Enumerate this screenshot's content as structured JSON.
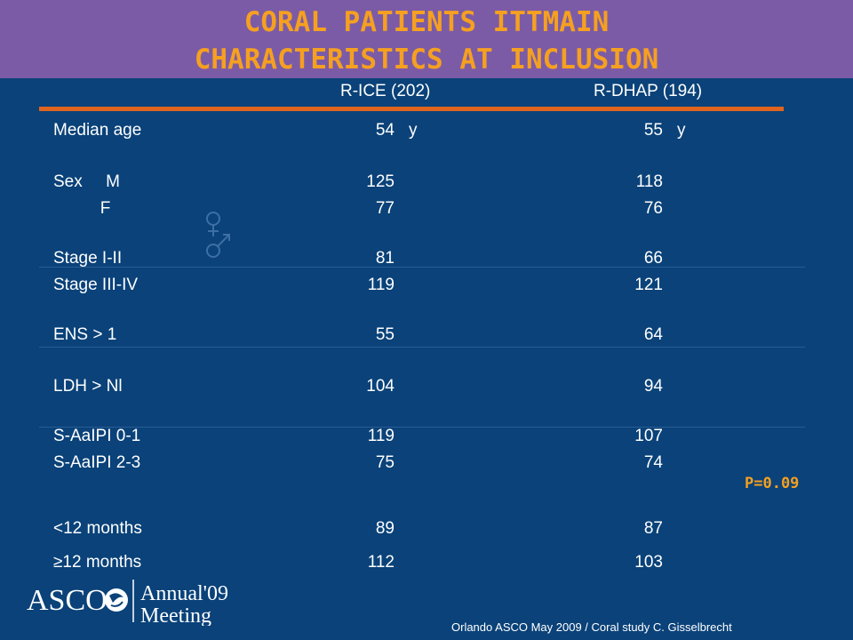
{
  "title": {
    "line1": "CORAL PATIENTS ITTMAIN",
    "line2": "CHARACTERISTICS AT INCLUSION"
  },
  "columns": {
    "col1": "R-ICE (202)",
    "col2": "R-DHAP  (194)"
  },
  "rows": [
    {
      "label": "Median age",
      "v1": "54",
      "v2": "55",
      "unit": "y"
    },
    {
      "label": "Sex     M",
      "v1": "125",
      "v2": "118"
    },
    {
      "label": "          F",
      "v1": "77",
      "v2": "76"
    },
    {
      "label": "Stage I-II",
      "v1": "81",
      "v2": "66"
    },
    {
      "label": "Stage III-IV",
      "v1": "119",
      "v2": "121"
    },
    {
      "label": "ENS > 1",
      "v1": "55",
      "v2": "64"
    },
    {
      "label": "LDH > Nl",
      "v1": "104",
      "v2": "94"
    },
    {
      "label": "S-AaIPI 0-1",
      "v1": "119",
      "v2": "107"
    },
    {
      "label": "S-AaIPI 2-3",
      "v1": "75",
      "v2": "74"
    },
    {
      "label": "<12 months",
      "v1": "89",
      "v2": "87"
    },
    {
      "label": "≥12 months",
      "v1": "112",
      "v2": "103"
    }
  ],
  "p_value": "P=0.09",
  "logo": {
    "asco": "ASCO",
    "annual": "Annual'09",
    "meeting": "Meeting"
  },
  "footer": "Orlando ASCO May 2009 / Coral study  C. Gisselbrecht",
  "colors": {
    "title_band": "#7c5ba6",
    "title_text": "#f5a020",
    "background": "#0a4279",
    "rule": "#e0641e"
  },
  "icons": [
    "female-male-symbol-icon",
    "asco-logo-icon"
  ]
}
